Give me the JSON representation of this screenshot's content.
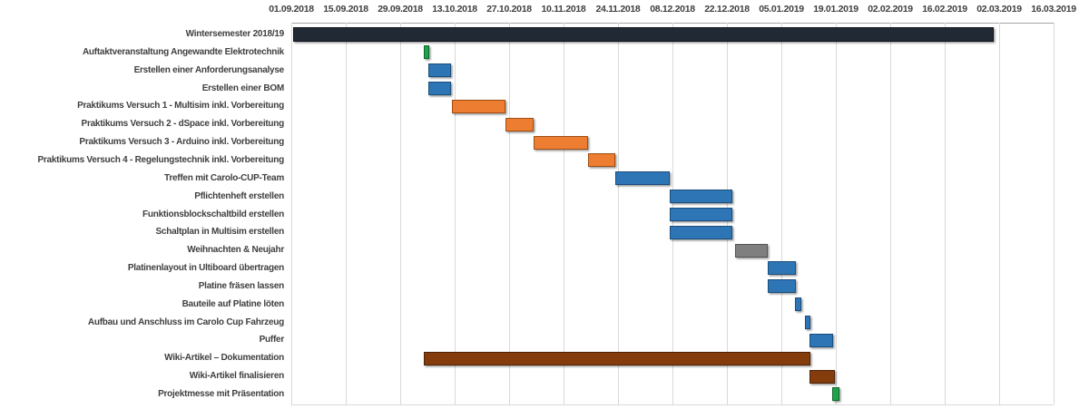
{
  "chart_data": {
    "type": "bar",
    "subtype": "gantt",
    "title": "",
    "x_axis": {
      "tick_labels": [
        "01.09.2018",
        "15.09.2018",
        "29.09.2018",
        "13.10.2018",
        "27.10.2018",
        "10.11.2018",
        "24.11.2018",
        "08.12.2018",
        "22.12.2018",
        "05.01.2019",
        "19.01.2019",
        "02.02.2019",
        "16.02.2019",
        "02.03.2019",
        "16.03.2019"
      ],
      "days_per_tick": 14,
      "range_start": "01.09.2018",
      "range_end": "16.03.2019",
      "grid": true
    },
    "legend": "none",
    "palette": {
      "semester": {
        "fill": "#212934",
        "border": "#0f141b"
      },
      "task": {
        "fill": "#2E75B6",
        "border": "#1d4e79"
      },
      "practical": {
        "fill": "#ED7D31",
        "border": "#9e4e14"
      },
      "milestone": {
        "fill": "#1EA24B",
        "border": "#11662e"
      },
      "holiday": {
        "fill": "#7F7F7F",
        "border": "#545454"
      },
      "wiki": {
        "fill": "#843C0C",
        "border": "#4d2206"
      }
    },
    "tasks": [
      {
        "label": "Wintersemester 2018/19",
        "start": "01.09.2018",
        "end": "28.02.2019",
        "start_day": 0.4,
        "end_day": 180.6,
        "role": "semester"
      },
      {
        "label": "Auftaktveranstaltung Angewandte Elektrotechnik",
        "start": "05.10.2018",
        "end": "06.10.2018",
        "start_day": 34.0,
        "end_day": 35.4,
        "role": "milestone"
      },
      {
        "label": "Erstellen einer Anforderungsanalyse",
        "start": "06.10.2018",
        "end": "12.10.2018",
        "start_day": 35.2,
        "end_day": 41.0,
        "role": "task"
      },
      {
        "label": "Erstellen einer BOM",
        "start": "06.10.2018",
        "end": "12.10.2018",
        "start_day": 35.2,
        "end_day": 41.0,
        "role": "task"
      },
      {
        "label": "Praktikums Versuch 1 - Multisim inkl. Vorbereitung",
        "start": "12.10.2018",
        "end": "26.10.2018",
        "start_day": 41.3,
        "end_day": 55.0,
        "role": "practical"
      },
      {
        "label": "Praktikums Versuch 2 - dSpace inkl. Vorbereitung",
        "start": "26.10.2018",
        "end": "02.11.2018",
        "start_day": 55.0,
        "end_day": 62.3,
        "role": "practical"
      },
      {
        "label": "Praktikums Versuch 3 - Arduino inkl. Vorbereitung",
        "start": "02.11.2018",
        "end": "16.11.2018",
        "start_day": 62.3,
        "end_day": 76.3,
        "role": "practical"
      },
      {
        "label": "Praktikums Versuch 4 - Regelungstechnik inkl. Vorbereitung",
        "start": "16.11.2018",
        "end": "23.11.2018",
        "start_day": 76.3,
        "end_day": 83.3,
        "role": "practical"
      },
      {
        "label": "Treffen mit Carolo-CUP-Team",
        "start": "23.11.2018",
        "end": "07.12.2018",
        "start_day": 83.3,
        "end_day": 97.3,
        "role": "task"
      },
      {
        "label": "Pflichtenheft erstellen",
        "start": "07.12.2018",
        "end": "23.12.2018",
        "start_day": 97.3,
        "end_day": 113.4,
        "role": "task"
      },
      {
        "label": "Funktionsblockschaltbild erstellen",
        "start": "07.12.2018",
        "end": "23.12.2018",
        "start_day": 97.3,
        "end_day": 113.4,
        "role": "task"
      },
      {
        "label": "Schaltplan in Multisim erstellen",
        "start": "07.12.2018",
        "end": "23.12.2018",
        "start_day": 97.3,
        "end_day": 113.4,
        "role": "task"
      },
      {
        "label": "Weihnachten & Neujahr",
        "start": "24.12.2018",
        "end": "01.01.2019",
        "start_day": 114.2,
        "end_day": 122.4,
        "role": "holiday"
      },
      {
        "label": "Platinenlayout in Ultiboard übertragen",
        "start": "01.01.2019",
        "end": "08.01.2019",
        "start_day": 122.6,
        "end_day": 129.8,
        "role": "task"
      },
      {
        "label": "Platine fräsen lassen",
        "start": "01.01.2019",
        "end": "08.01.2019",
        "start_day": 122.6,
        "end_day": 129.8,
        "role": "task"
      },
      {
        "label": "Bauteile auf Platine löten",
        "start": "08.01.2019",
        "end": "10.01.2019",
        "start_day": 129.5,
        "end_day": 131.2,
        "role": "task"
      },
      {
        "label": "Aufbau und Anschluss im Carolo Cup Fahrzeug",
        "start": "10.01.2019",
        "end": "12.01.2019",
        "start_day": 132.1,
        "end_day": 133.5,
        "role": "task"
      },
      {
        "label": "Puffer",
        "start": "12.01.2019",
        "end": "18.01.2019",
        "start_day": 133.3,
        "end_day": 139.3,
        "role": "task"
      },
      {
        "label": "Wiki-Artikel – Dokumentation",
        "start": "05.10.2018",
        "end": "12.01.2019",
        "start_day": 34.0,
        "end_day": 133.5,
        "role": "wiki"
      },
      {
        "label": "Wiki-Artikel finalisieren",
        "start": "12.01.2019",
        "end": "19.01.2019",
        "start_day": 133.3,
        "end_day": 139.8,
        "role": "wiki"
      },
      {
        "label": "Projektmesse mit Präsentation",
        "start": "19.01.2019",
        "end": "20.01.2019",
        "start_day": 139.0,
        "end_day": 140.9,
        "role": "milestone"
      }
    ]
  }
}
